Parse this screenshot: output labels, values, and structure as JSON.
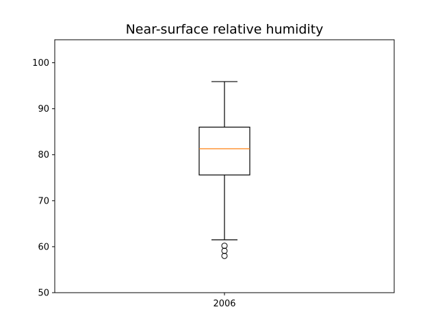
{
  "chart_data": {
    "type": "box",
    "title": "Near-surface relative humidity",
    "xlabel": "",
    "ylabel": "",
    "categories": [
      "2006"
    ],
    "ylim": [
      50,
      105
    ],
    "yticks": [
      50,
      60,
      70,
      80,
      90,
      100
    ],
    "grid": false,
    "boxes": [
      {
        "category": "2006",
        "whisker_low": 61.5,
        "q1": 75.6,
        "median": 81.3,
        "q3": 86.0,
        "whisker_high": 95.9,
        "outliers": [
          60.2,
          59.1,
          58.0
        ]
      }
    ],
    "colors": {
      "box": "#000000",
      "median": "#ff7f0e",
      "background": "#ffffff"
    }
  }
}
